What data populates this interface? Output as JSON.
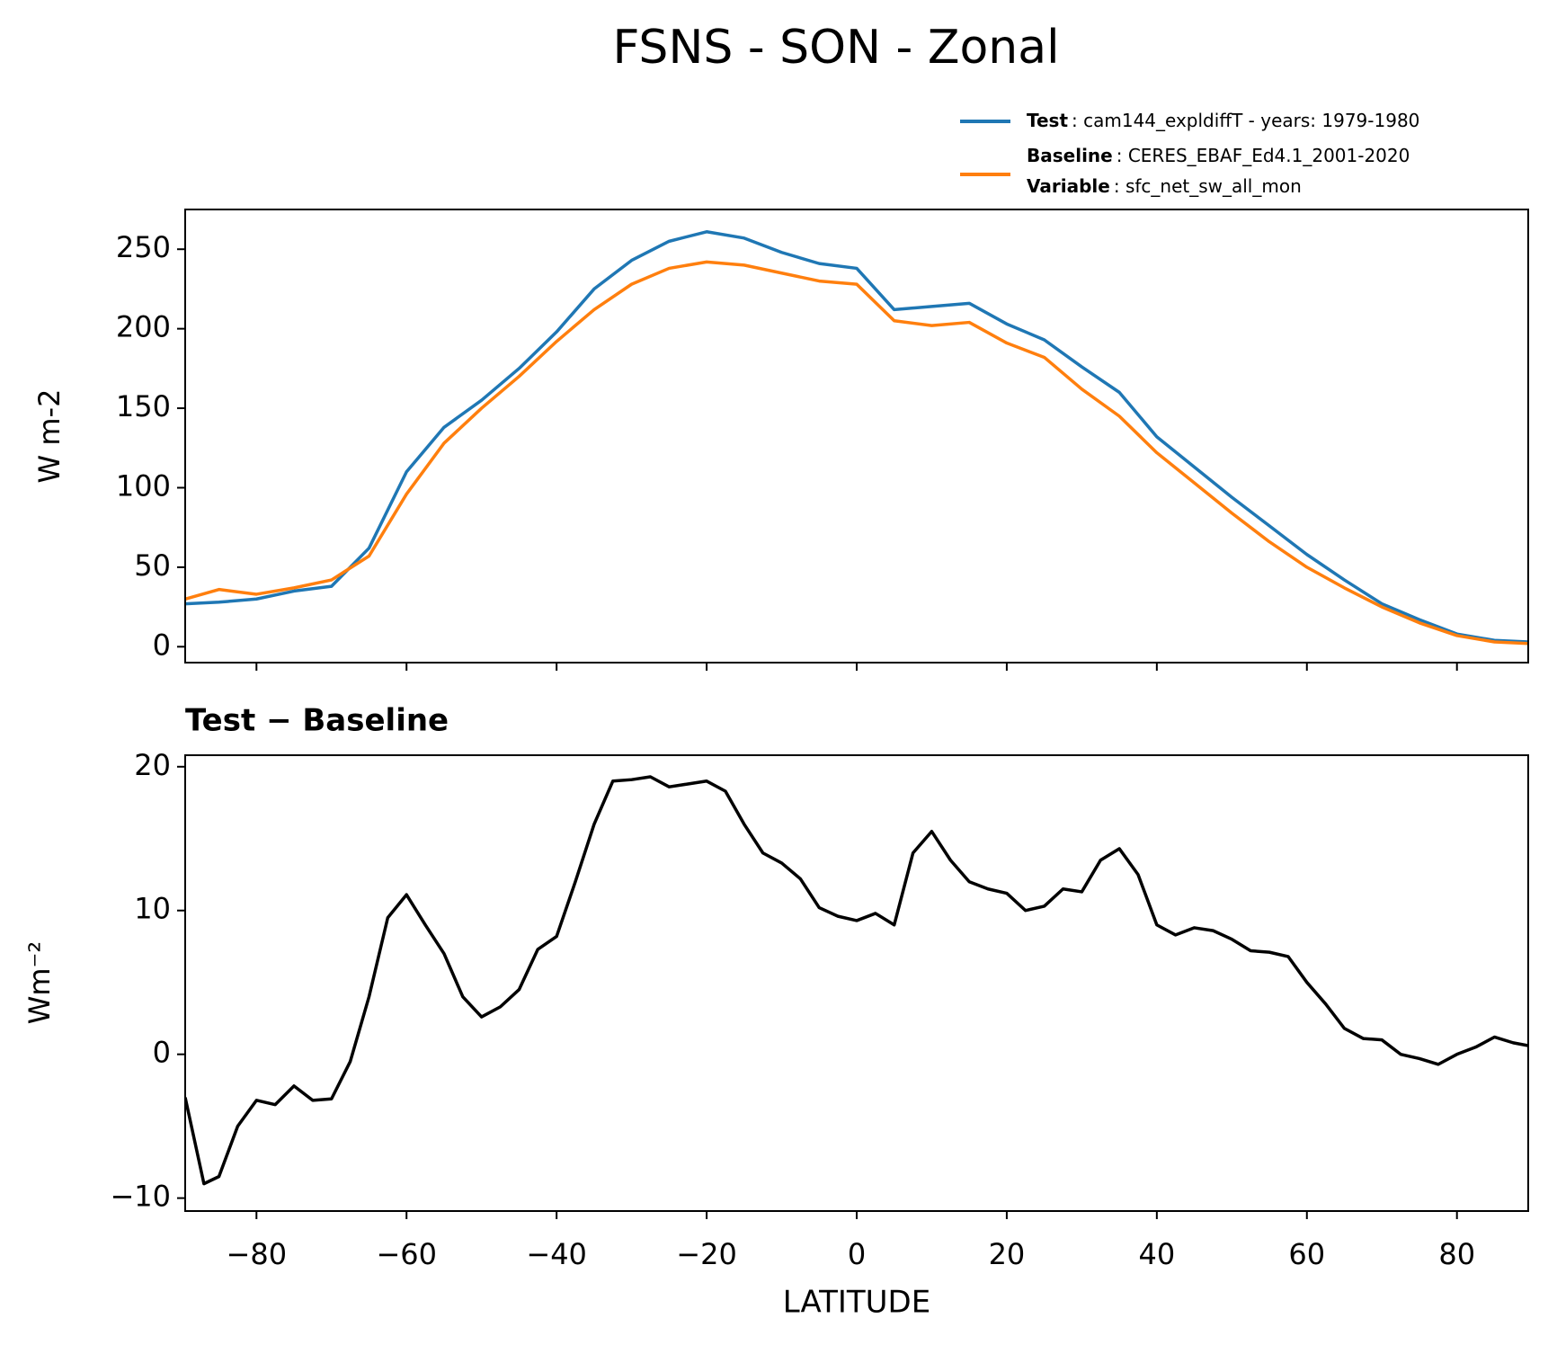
{
  "chart_data": [
    {
      "type": "line",
      "title": "FSNS - SON - Zonal",
      "y_label": "W m-2",
      "x": [
        -89.5,
        -85,
        -80,
        -75,
        -70,
        -65,
        -60,
        -55,
        -50,
        -45,
        -40,
        -35,
        -30,
        -25,
        -20,
        -15,
        -10,
        -5,
        0,
        5,
        10,
        15,
        20,
        25,
        30,
        35,
        40,
        45,
        50,
        55,
        60,
        65,
        70,
        75,
        80,
        85,
        89.5
      ],
      "series": [
        {
          "name": "Test",
          "description": ": cam144_expldiffT - years: 1979-1980",
          "color": "#1f77b4",
          "values": [
            27,
            28,
            30,
            35,
            38,
            62,
            110,
            138,
            155,
            175,
            198,
            225,
            243,
            255,
            261,
            257,
            248,
            241,
            238,
            212,
            214,
            216,
            203,
            193,
            176,
            160,
            132,
            113,
            94,
            76,
            58,
            42,
            27,
            17,
            8,
            4,
            3
          ]
        },
        {
          "name": "Baseline",
          "description": ": CERES_EBAF_Ed4.1_2001-2020",
          "variable_label": "Variable",
          "variable": ": sfc_net_sw_all_mon",
          "color": "#ff7f0e",
          "values": [
            30,
            36,
            33,
            37,
            42,
            57,
            96,
            128,
            150,
            170,
            192,
            212,
            228,
            238,
            242,
            240,
            235,
            230,
            228,
            205,
            202,
            204,
            191,
            182,
            162,
            145,
            122,
            103,
            84,
            66,
            50,
            37,
            25,
            15,
            7,
            3,
            2
          ]
        }
      ],
      "xlim": [
        -89.5,
        89.5
      ],
      "ylim": [
        -10,
        275
      ],
      "yticks": [
        0,
        50,
        100,
        150,
        200,
        250
      ],
      "xticks": [
        -80,
        -60,
        -40,
        -20,
        0,
        20,
        40,
        60,
        80
      ]
    },
    {
      "type": "line",
      "title": "Test − Baseline",
      "y_label": "Wm⁻²",
      "x_label": "LATITUDE",
      "x": [
        -89.5,
        -87,
        -85,
        -82.5,
        -80,
        -77.5,
        -75,
        -72.5,
        -70,
        -67.5,
        -65,
        -62.5,
        -60,
        -57.5,
        -55,
        -52.5,
        -50,
        -47.5,
        -45,
        -42.5,
        -40,
        -37.5,
        -35,
        -32.5,
        -30,
        -27.5,
        -25,
        -22.5,
        -20,
        -17.5,
        -15,
        -12.5,
        -10,
        -7.5,
        -5,
        -2.5,
        0,
        2.5,
        5,
        7.5,
        10,
        12.5,
        15,
        17.5,
        20,
        22.5,
        25,
        27.5,
        30,
        32.5,
        35,
        37.5,
        40,
        42.5,
        45,
        47.5,
        50,
        52.5,
        55,
        57.5,
        60,
        62.5,
        65,
        67.5,
        70,
        72.5,
        75,
        77.5,
        80,
        82.5,
        85,
        87.5,
        89.5
      ],
      "values": [
        -3,
        -9,
        -8.5,
        -5,
        -3.2,
        -3.5,
        -2.2,
        -3.2,
        -3.1,
        -0.5,
        4,
        9.5,
        11.1,
        9,
        7,
        4,
        2.6,
        3.3,
        4.5,
        7.3,
        8.2,
        12,
        16,
        19,
        19.1,
        19.3,
        18.6,
        18.8,
        19,
        18.3,
        16,
        14,
        13.3,
        12.2,
        10.2,
        9.6,
        9.3,
        9.8,
        9,
        14,
        15.5,
        13.5,
        12,
        11.5,
        11.2,
        10,
        10.3,
        11.5,
        11.3,
        13.5,
        14.3,
        12.5,
        9,
        8.3,
        8.8,
        8.6,
        8,
        7.2,
        7.1,
        6.8,
        5,
        3.5,
        1.8,
        1.1,
        1,
        0,
        -0.3,
        -0.7,
        0,
        0.5,
        1.2,
        0.8,
        0.6
      ],
      "color": "#000000",
      "xlim": [
        -89.5,
        89.5
      ],
      "ylim": [
        -10.9,
        20.8
      ],
      "yticks": [
        {
          "value": -10,
          "label": "−10"
        },
        0,
        10,
        20
      ],
      "xticks": [
        {
          "value": -80,
          "label": "−80"
        },
        {
          "value": -60,
          "label": "−60"
        },
        {
          "value": -40,
          "label": "−40"
        },
        {
          "value": -20,
          "label": "−20"
        },
        0,
        20,
        40,
        60,
        80
      ]
    }
  ]
}
